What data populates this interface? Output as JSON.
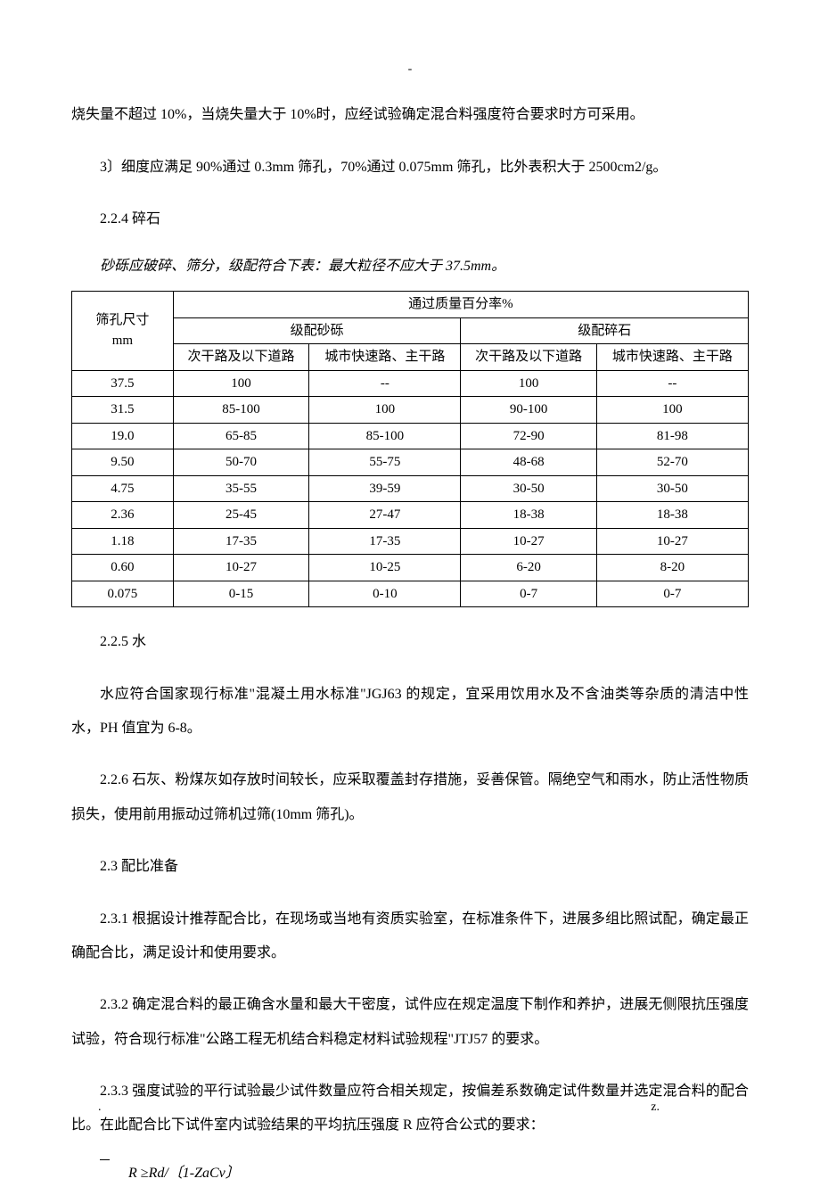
{
  "topDash": "-",
  "para1": "烧失量不超过 10%，当烧失量大于 10%时，应经试验确定混合料强度符合要求时方可采用。",
  "para2": "3〕细度应满足 90%通过 0.3mm 筛孔，70%通过 0.075mm 筛孔，比外表积大于 2500cm2/g。",
  "section224": "2.2.4  碎石",
  "tableIntro": "砂砾应破碎、筛分，级配符合下表：最大粒径不应大于 37.5mm。",
  "table": {
    "colHeader1": "筛孔尺寸",
    "colHeader2": "mm",
    "spanHeader": "通过质量百分率%",
    "subHeaderA": "级配砂砾",
    "subHeaderB": "级配碎石",
    "subcol1": "次干路及以下道路",
    "subcol2": "城市快速路、主干路",
    "subcol3": "次干路及以下道路",
    "subcol4": "城市快速路、主干路",
    "rows": [
      {
        "size": "37.5",
        "a1": "100",
        "a2": "--",
        "b1": "100",
        "b2": "--"
      },
      {
        "size": "31.5",
        "a1": "85-100",
        "a2": "100",
        "b1": "90-100",
        "b2": "100"
      },
      {
        "size": "19.0",
        "a1": "65-85",
        "a2": "85-100",
        "b1": "72-90",
        "b2": "81-98"
      },
      {
        "size": "9.50",
        "a1": "50-70",
        "a2": "55-75",
        "b1": "48-68",
        "b2": "52-70"
      },
      {
        "size": "4.75",
        "a1": "35-55",
        "a2": "39-59",
        "b1": "30-50",
        "b2": "30-50"
      },
      {
        "size": "2.36",
        "a1": "25-45",
        "a2": "27-47",
        "b1": "18-38",
        "b2": "18-38"
      },
      {
        "size": "1.18",
        "a1": "17-35",
        "a2": "17-35",
        "b1": "10-27",
        "b2": "10-27"
      },
      {
        "size": "0.60",
        "a1": "10-27",
        "a2": "10-25",
        "b1": "6-20",
        "b2": "8-20"
      },
      {
        "size": "0.075",
        "a1": "0-15",
        "a2": "0-10",
        "b1": "0-7",
        "b2": "0-7"
      }
    ]
  },
  "section225": "2.2.5  水",
  "para225": "水应符合国家现行标准\"混凝土用水标准\"JGJ63 的规定，宜采用饮用水及不含油类等杂质的清洁中性水，PH 值宜为 6-8。",
  "para226": "2.2.6 石灰、粉煤灰如存放时间较长，应采取覆盖封存措施，妥善保管。隔绝空气和雨水，防止活性物质损失，使用前用振动过筛机过筛(10mm 筛孔)。",
  "section23": "2.3  配比准备",
  "para231": "2.3.1  根据设计推荐配合比，在现场或当地有资质实验室，在标准条件下，进展多组比照试配，确定最正确配合比，满足设计和使用要求。",
  "para232": "2.3.2 确定混合料的最正确含水量和最大干密度，试件应在规定温度下制作和养护，进展无侧限抗压强度试验，符合现行标准\"公路工程无机结合料稳定材料试验规程\"JTJ57  的要求。",
  "para233": "2.3.3 强度试验的平行试验最少试件数量应符合相关规定，按偏差系数确定试件数量并选定混合料的配合比。在此配合比下试件室内试验结果的平均抗压强度 R 应符合公式的要求：",
  "formulaPrefix": "R",
  "formulaRest": " ≥Rd/〔1-ZaCv〕",
  "footerDot": ".",
  "footerZ": "z."
}
